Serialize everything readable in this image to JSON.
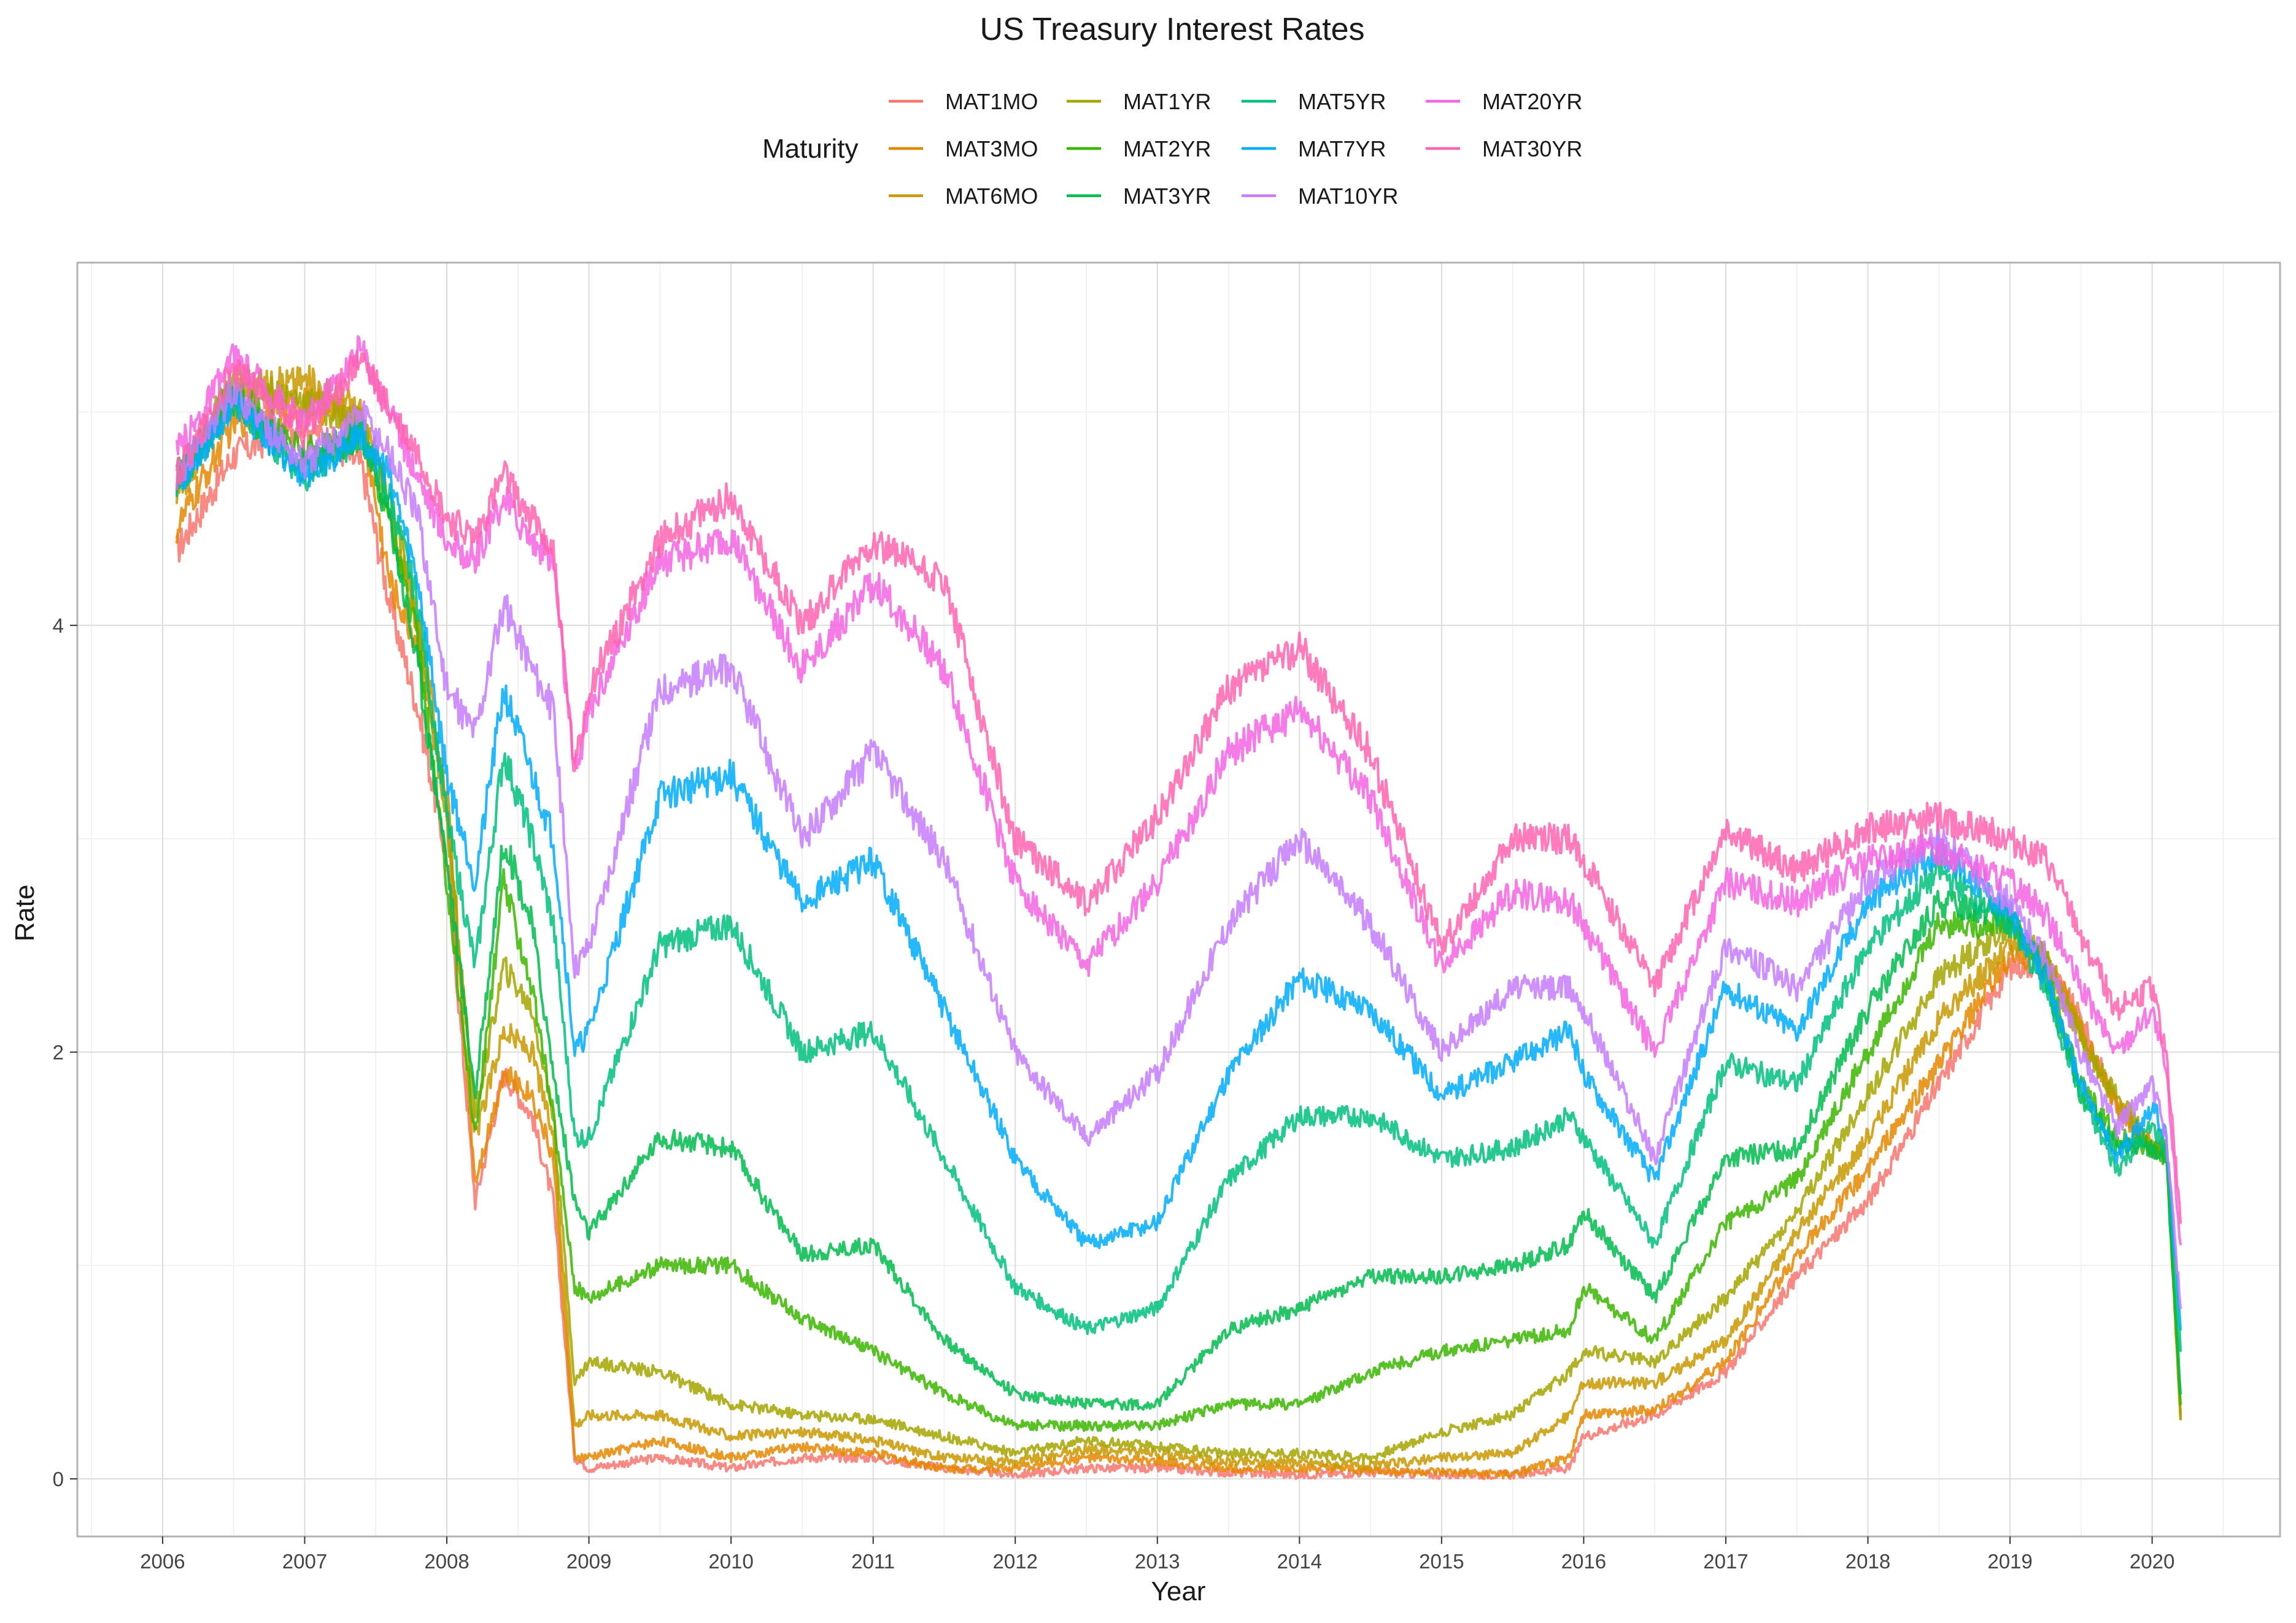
{
  "chart_data": {
    "type": "line",
    "title": "US Treasury Interest Rates",
    "xlabel": "Year",
    "ylabel": "Rate",
    "legend_title": "Maturity",
    "legend_position": "top",
    "grid": true,
    "xlim": [
      2005.4,
      2020.9
    ],
    "ylim": [
      -0.27,
      5.7
    ],
    "x_ticks": [
      2006,
      2007,
      2008,
      2009,
      2010,
      2011,
      2012,
      2013,
      2014,
      2015,
      2016,
      2017,
      2018,
      2019,
      2020
    ],
    "x_tick_labels": [
      "2006",
      "2007",
      "2008",
      "2009",
      "2010",
      "2011",
      "2012",
      "2013",
      "2014",
      "2015",
      "2016",
      "2017",
      "2018",
      "2019",
      "2020"
    ],
    "y_ticks": [
      0,
      2,
      4
    ],
    "y_tick_labels": [
      "0",
      "2",
      "4"
    ],
    "series": [
      {
        "name": "MAT1MO",
        "color": "#F8766D",
        "x": [
          2006.1,
          2006.5,
          2007.0,
          2007.4,
          2007.6,
          2007.8,
          2008.0,
          2008.2,
          2008.4,
          2008.6,
          2008.75,
          2008.9,
          2009.0,
          2009.5,
          2010.0,
          2010.5,
          2011.0,
          2011.5,
          2012.0,
          2012.5,
          2013.0,
          2013.5,
          2014.0,
          2014.5,
          2015.0,
          2015.5,
          2015.9,
          2016.0,
          2016.5,
          2017.0,
          2017.5,
          2018.0,
          2018.5,
          2019.0,
          2019.25,
          2019.5,
          2019.75,
          2020.0,
          2020.1,
          2020.2
        ],
        "y": [
          4.35,
          4.8,
          4.95,
          4.75,
          4.1,
          3.6,
          2.9,
          1.3,
          1.9,
          1.7,
          1.3,
          0.1,
          0.05,
          0.1,
          0.05,
          0.1,
          0.1,
          0.05,
          0.02,
          0.05,
          0.05,
          0.03,
          0.02,
          0.03,
          0.02,
          0.02,
          0.05,
          0.2,
          0.3,
          0.5,
          0.95,
          1.3,
          1.85,
          2.4,
          2.42,
          2.15,
          1.75,
          1.55,
          1.55,
          0.3
        ]
      },
      {
        "name": "MAT3MO",
        "color": "#E58700",
        "x": [
          2006.1,
          2006.5,
          2007.0,
          2007.4,
          2007.6,
          2007.8,
          2008.0,
          2008.2,
          2008.4,
          2008.6,
          2008.75,
          2008.9,
          2009.0,
          2009.5,
          2010.0,
          2010.5,
          2011.0,
          2011.5,
          2012.0,
          2012.5,
          2013.0,
          2013.5,
          2014.0,
          2014.5,
          2015.0,
          2015.5,
          2015.9,
          2016.0,
          2016.5,
          2017.0,
          2017.5,
          2018.0,
          2018.5,
          2019.0,
          2019.25,
          2019.5,
          2019.75,
          2020.0,
          2020.1,
          2020.2
        ],
        "y": [
          4.45,
          4.95,
          5.05,
          4.95,
          4.2,
          3.9,
          3.1,
          1.4,
          1.9,
          1.8,
          1.5,
          0.1,
          0.1,
          0.18,
          0.1,
          0.15,
          0.12,
          0.05,
          0.05,
          0.1,
          0.08,
          0.05,
          0.05,
          0.04,
          0.03,
          0.02,
          0.1,
          0.3,
          0.32,
          0.55,
          1.05,
          1.45,
          1.95,
          2.45,
          2.45,
          2.1,
          1.75,
          1.55,
          1.55,
          0.28
        ]
      },
      {
        "name": "MAT6MO",
        "color": "#C99800",
        "x": [
          2006.1,
          2006.5,
          2007.0,
          2007.4,
          2007.6,
          2007.8,
          2008.0,
          2008.2,
          2008.4,
          2008.6,
          2008.75,
          2008.9,
          2009.0,
          2009.5,
          2010.0,
          2010.5,
          2011.0,
          2011.5,
          2012.0,
          2012.5,
          2013.0,
          2013.5,
          2014.0,
          2014.5,
          2015.0,
          2015.5,
          2015.9,
          2016.0,
          2016.5,
          2017.0,
          2017.5,
          2018.0,
          2018.5,
          2019.0,
          2019.25,
          2019.5,
          2019.75,
          2020.0,
          2020.1,
          2020.2
        ],
        "y": [
          4.6,
          5.1,
          5.15,
          5.0,
          4.5,
          4.0,
          3.2,
          1.6,
          2.1,
          2.0,
          1.6,
          0.25,
          0.3,
          0.3,
          0.2,
          0.22,
          0.18,
          0.1,
          0.08,
          0.14,
          0.12,
          0.08,
          0.08,
          0.06,
          0.1,
          0.12,
          0.3,
          0.45,
          0.45,
          0.65,
          1.15,
          1.6,
          2.15,
          2.5,
          2.45,
          2.1,
          1.75,
          1.55,
          1.55,
          0.3
        ]
      },
      {
        "name": "MAT1YR",
        "color": "#A3A500",
        "x": [
          2006.1,
          2006.5,
          2007.0,
          2007.4,
          2007.6,
          2007.8,
          2008.0,
          2008.2,
          2008.4,
          2008.6,
          2008.75,
          2008.9,
          2009.0,
          2009.5,
          2010.0,
          2010.5,
          2011.0,
          2011.5,
          2012.0,
          2012.5,
          2013.0,
          2013.5,
          2014.0,
          2014.5,
          2015.0,
          2015.5,
          2015.9,
          2016.0,
          2016.5,
          2017.0,
          2017.5,
          2018.0,
          2018.5,
          2019.0,
          2019.25,
          2019.5,
          2019.75,
          2020.0,
          2020.1,
          2020.2
        ],
        "y": [
          4.65,
          5.15,
          5.05,
          4.95,
          4.6,
          4.0,
          3.1,
          1.7,
          2.4,
          2.2,
          1.7,
          0.45,
          0.55,
          0.5,
          0.35,
          0.3,
          0.28,
          0.2,
          0.12,
          0.18,
          0.15,
          0.12,
          0.12,
          0.1,
          0.22,
          0.3,
          0.5,
          0.6,
          0.55,
          0.85,
          1.25,
          1.8,
          2.35,
          2.6,
          2.45,
          2.05,
          1.8,
          1.55,
          1.55,
          0.28
        ]
      },
      {
        "name": "MAT2YR",
        "color": "#39B600",
        "x": [
          2006.1,
          2006.5,
          2007.0,
          2007.4,
          2007.6,
          2007.8,
          2008.0,
          2008.2,
          2008.4,
          2008.6,
          2008.75,
          2008.9,
          2009.0,
          2009.5,
          2010.0,
          2010.5,
          2011.0,
          2011.5,
          2012.0,
          2012.5,
          2013.0,
          2013.5,
          2014.0,
          2014.5,
          2015.0,
          2015.5,
          2015.9,
          2016.0,
          2016.5,
          2017.0,
          2017.5,
          2018.0,
          2018.5,
          2019.0,
          2019.25,
          2019.5,
          2019.75,
          2020.0,
          2020.1,
          2020.2
        ],
        "y": [
          4.7,
          5.1,
          4.8,
          4.9,
          4.5,
          3.9,
          2.8,
          1.6,
          2.8,
          2.3,
          1.7,
          0.9,
          0.85,
          1.0,
          1.0,
          0.75,
          0.6,
          0.4,
          0.25,
          0.25,
          0.25,
          0.35,
          0.35,
          0.5,
          0.6,
          0.65,
          0.7,
          0.9,
          0.65,
          1.2,
          1.4,
          2.0,
          2.6,
          2.6,
          2.4,
          1.85,
          1.6,
          1.55,
          1.5,
          0.35
        ]
      },
      {
        "name": "MAT3YR",
        "color": "#00BB4E",
        "x": [
          2006.1,
          2006.5,
          2007.0,
          2007.4,
          2007.6,
          2007.8,
          2008.0,
          2008.2,
          2008.4,
          2008.6,
          2008.75,
          2008.9,
          2009.0,
          2009.5,
          2010.0,
          2010.5,
          2011.0,
          2011.5,
          2012.0,
          2012.5,
          2013.0,
          2013.5,
          2014.0,
          2014.5,
          2015.0,
          2015.5,
          2015.9,
          2016.0,
          2016.5,
          2017.0,
          2017.5,
          2018.0,
          2018.5,
          2019.0,
          2019.25,
          2019.5,
          2019.75,
          2020.0,
          2020.1,
          2020.2
        ],
        "y": [
          4.7,
          5.05,
          4.75,
          4.9,
          4.5,
          3.8,
          2.9,
          1.8,
          3.0,
          2.6,
          1.9,
          1.3,
          1.15,
          1.6,
          1.55,
          1.05,
          1.1,
          0.65,
          0.4,
          0.35,
          0.35,
          0.7,
          0.8,
          0.95,
          0.95,
          1.0,
          1.1,
          1.25,
          0.85,
          1.5,
          1.55,
          2.2,
          2.7,
          2.65,
          2.35,
          1.8,
          1.55,
          1.55,
          1.5,
          0.4
        ]
      },
      {
        "name": "MAT5YR",
        "color": "#00BF7D",
        "x": [
          2006.1,
          2006.5,
          2007.0,
          2007.4,
          2007.6,
          2007.8,
          2008.0,
          2008.2,
          2008.4,
          2008.6,
          2008.75,
          2008.9,
          2009.0,
          2009.5,
          2010.0,
          2010.5,
          2011.0,
          2011.5,
          2012.0,
          2012.5,
          2013.0,
          2013.5,
          2014.0,
          2014.5,
          2015.0,
          2015.5,
          2015.9,
          2016.0,
          2016.5,
          2017.0,
          2017.5,
          2018.0,
          2018.5,
          2019.0,
          2019.25,
          2019.5,
          2019.75,
          2020.0,
          2020.1,
          2020.2
        ],
        "y": [
          4.65,
          5.05,
          4.7,
          4.9,
          4.6,
          4.1,
          3.1,
          2.4,
          3.4,
          3.0,
          2.6,
          1.6,
          1.6,
          2.5,
          2.6,
          2.0,
          2.1,
          1.5,
          0.9,
          0.7,
          0.8,
          1.4,
          1.7,
          1.7,
          1.5,
          1.55,
          1.7,
          1.6,
          1.1,
          1.95,
          1.85,
          2.5,
          2.85,
          2.6,
          2.3,
          1.8,
          1.45,
          1.65,
          1.55,
          0.6
        ]
      },
      {
        "name": "MAT7YR",
        "color": "#00ACFC",
        "x": [
          2006.1,
          2006.5,
          2007.0,
          2007.4,
          2007.6,
          2007.8,
          2008.0,
          2008.2,
          2008.4,
          2008.6,
          2008.75,
          2008.9,
          2009.0,
          2009.5,
          2010.0,
          2010.5,
          2011.0,
          2011.5,
          2012.0,
          2012.5,
          2013.0,
          2013.5,
          2014.0,
          2014.5,
          2015.0,
          2015.5,
          2015.9,
          2016.0,
          2016.5,
          2017.0,
          2017.5,
          2018.0,
          2018.5,
          2019.0,
          2019.25,
          2019.5,
          2019.75,
          2020.0,
          2020.1,
          2020.2
        ],
        "y": [
          4.65,
          5.05,
          4.7,
          4.9,
          4.7,
          4.2,
          3.3,
          2.8,
          3.7,
          3.3,
          3.0,
          2.0,
          2.1,
          3.2,
          3.3,
          2.7,
          2.9,
          2.2,
          1.5,
          1.1,
          1.2,
          1.9,
          2.35,
          2.2,
          1.8,
          1.95,
          2.1,
          1.9,
          1.4,
          2.3,
          2.1,
          2.7,
          2.95,
          2.65,
          2.35,
          1.85,
          1.5,
          1.75,
          1.6,
          0.7
        ]
      },
      {
        "name": "MAT10YR",
        "color": "#C77CFF",
        "x": [
          2006.1,
          2006.5,
          2007.0,
          2007.4,
          2007.6,
          2007.8,
          2008.0,
          2008.2,
          2008.4,
          2008.6,
          2008.75,
          2008.9,
          2009.0,
          2009.5,
          2010.0,
          2010.5,
          2011.0,
          2011.5,
          2012.0,
          2012.5,
          2013.0,
          2013.5,
          2014.0,
          2014.5,
          2015.0,
          2015.5,
          2015.9,
          2016.0,
          2016.5,
          2017.0,
          2017.5,
          2018.0,
          2018.5,
          2019.0,
          2019.25,
          2019.5,
          2019.75,
          2020.0,
          2020.1,
          2020.2
        ],
        "y": [
          4.7,
          5.1,
          4.75,
          5.0,
          4.8,
          4.5,
          3.7,
          3.5,
          4.1,
          3.8,
          3.6,
          2.4,
          2.5,
          3.7,
          3.8,
          3.0,
          3.4,
          2.9,
          2.0,
          1.6,
          1.9,
          2.6,
          3.0,
          2.6,
          2.0,
          2.3,
          2.3,
          2.2,
          1.5,
          2.5,
          2.3,
          2.8,
          3.0,
          2.7,
          2.45,
          2.0,
          1.65,
          1.85,
          1.6,
          0.8
        ]
      },
      {
        "name": "MAT20YR",
        "color": "#F564E3",
        "x": [
          2006.1,
          2006.5,
          2007.0,
          2007.4,
          2007.6,
          2007.8,
          2008.0,
          2008.2,
          2008.4,
          2008.6,
          2008.75,
          2008.9,
          2009.0,
          2009.5,
          2010.0,
          2010.5,
          2011.0,
          2011.5,
          2012.0,
          2012.5,
          2013.0,
          2013.5,
          2014.0,
          2014.5,
          2015.0,
          2015.5,
          2015.9,
          2016.0,
          2016.5,
          2017.0,
          2017.5,
          2018.0,
          2018.5,
          2019.0,
          2019.25,
          2019.5,
          2019.75,
          2020.0,
          2020.1,
          2020.2
        ],
        "y": [
          4.8,
          5.25,
          4.95,
          5.3,
          5.0,
          4.7,
          4.4,
          4.3,
          4.6,
          4.4,
          4.3,
          3.3,
          3.6,
          4.3,
          4.4,
          3.8,
          4.2,
          3.8,
          2.8,
          2.4,
          2.8,
          3.4,
          3.6,
          3.2,
          2.4,
          2.75,
          2.7,
          2.6,
          2.0,
          2.8,
          2.7,
          2.9,
          2.95,
          2.8,
          2.65,
          2.3,
          2.0,
          2.2,
          1.9,
          1.1
        ]
      },
      {
        "name": "MAT30YR",
        "color": "#FF64B0",
        "x": [
          2006.1,
          2006.5,
          2007.0,
          2007.4,
          2007.6,
          2007.8,
          2008.0,
          2008.2,
          2008.4,
          2008.6,
          2008.75,
          2008.9,
          2009.0,
          2009.5,
          2010.0,
          2010.5,
          2011.0,
          2011.5,
          2012.0,
          2012.5,
          2013.0,
          2013.5,
          2014.0,
          2014.5,
          2015.0,
          2015.5,
          2015.9,
          2016.0,
          2016.5,
          2017.0,
          2017.5,
          2018.0,
          2018.5,
          2019.0,
          2019.25,
          2019.5,
          2019.75,
          2020.0,
          2020.1,
          2020.2
        ],
        "y": [
          4.7,
          5.2,
          4.9,
          5.25,
          5.0,
          4.8,
          4.5,
          4.4,
          4.7,
          4.5,
          4.35,
          3.3,
          3.7,
          4.4,
          4.6,
          4.0,
          4.4,
          4.2,
          3.0,
          2.7,
          3.1,
          3.7,
          3.9,
          3.4,
          2.5,
          3.0,
          3.0,
          2.9,
          2.3,
          3.05,
          2.85,
          3.05,
          3.1,
          3.0,
          2.9,
          2.55,
          2.2,
          2.3,
          2.0,
          1.2
        ]
      }
    ]
  }
}
